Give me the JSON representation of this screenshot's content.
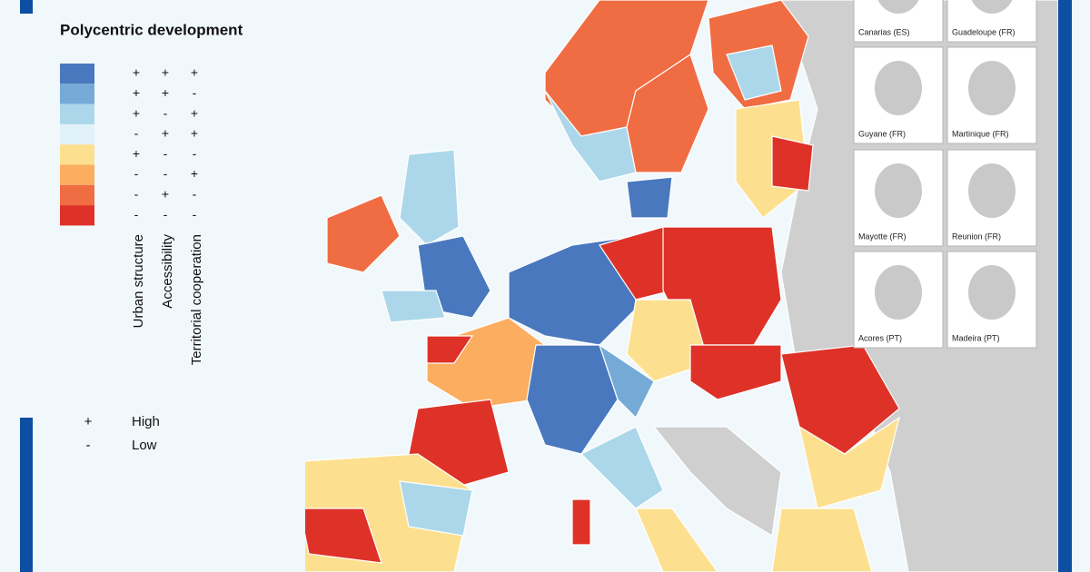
{
  "legend": {
    "title": "Polycentric development",
    "columns": [
      "Urban structure",
      "Accessibility",
      "Territorial cooperation"
    ],
    "rows": [
      {
        "color": "#4a78be",
        "signs": [
          "+",
          "+",
          "+"
        ]
      },
      {
        "color": "#76aad6",
        "signs": [
          "+",
          "+",
          "-"
        ]
      },
      {
        "color": "#acd7ea",
        "signs": [
          "+",
          "-",
          "+"
        ]
      },
      {
        "color": "#e2f2f9",
        "signs": [
          "-",
          "+",
          "+"
        ]
      },
      {
        "color": "#fde08f",
        "signs": [
          "+",
          "-",
          "-"
        ]
      },
      {
        "color": "#fbad60",
        "signs": [
          "-",
          "-",
          "+"
        ]
      },
      {
        "color": "#f06c42",
        "signs": [
          "-",
          "+",
          "-"
        ]
      },
      {
        "color": "#de3127",
        "signs": [
          "-",
          "-",
          "-"
        ]
      }
    ],
    "key": [
      {
        "symbol": "+",
        "label": "High"
      },
      {
        "symbol": "-",
        "label": "Low"
      }
    ]
  },
  "insets": [
    "Canarias (ES)",
    "Guadeloupe (FR)",
    "Guyane (FR)",
    "Martinique (FR)",
    "Mayotte (FR)",
    "Reunion (FR)",
    "Acores (PT)",
    "Madeira (PT)"
  ]
}
